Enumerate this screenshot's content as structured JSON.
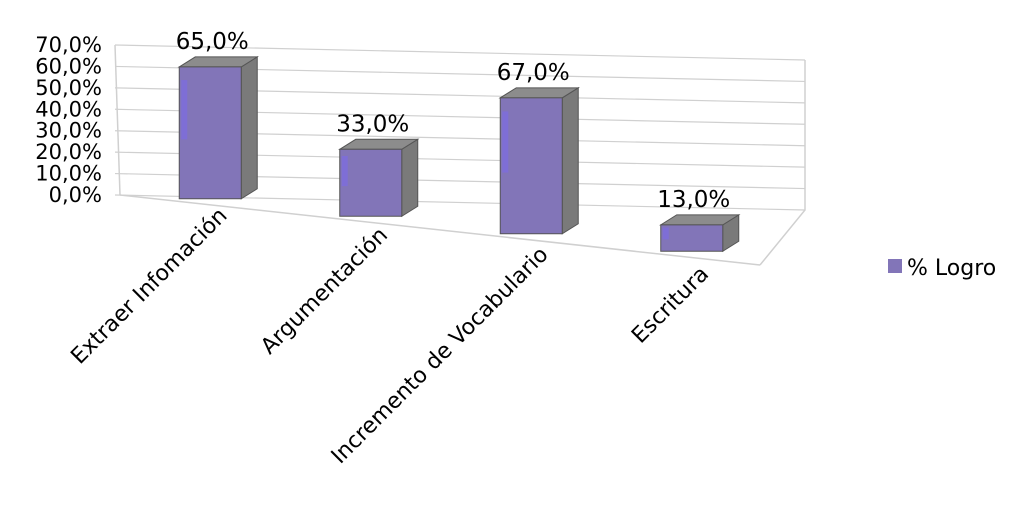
{
  "chart_data": {
    "type": "bar",
    "categories": [
      "Extraer Infomación",
      "Argumentación",
      "Incremento de Vocabulario",
      "Escritura"
    ],
    "series": [
      {
        "name": "% Logro",
        "values": [
          65.0,
          33.0,
          67.0,
          13.0
        ]
      }
    ],
    "data_labels": [
      "65,0%",
      "33,0%",
      "67,0%",
      "13,0%"
    ],
    "yticks": [
      "0,0%",
      "10,0%",
      "20,0%",
      "30,0%",
      "40,0%",
      "50,0%",
      "60,0%",
      "70,0%"
    ],
    "ylim": [
      0,
      70
    ],
    "legend": {
      "position": "right",
      "label": "% Logro"
    },
    "style": "3d-column",
    "colors": {
      "bar_front": "#8275b8",
      "bar_top": "#8c8c8c",
      "bar_side": "#7a7a7a",
      "highlight": "#7b68ee",
      "grid": "#d0d0d0"
    }
  }
}
